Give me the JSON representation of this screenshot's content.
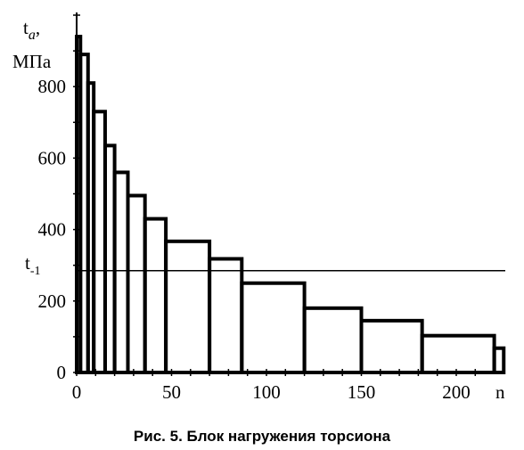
{
  "caption": "Рис. 5. Блок нагружения торсиона",
  "chart_data": {
    "type": "step",
    "ylabel_main": "t",
    "ylabel_sub": "a",
    "ylabel_suffix": ",",
    "yunit": "МПа",
    "xlabel": "n",
    "xlim": [
      0,
      215
    ],
    "ylim": [
      0,
      1000
    ],
    "xticks": [
      0,
      50,
      100,
      150,
      200
    ],
    "yticks": [
      0,
      200,
      400,
      600,
      800
    ],
    "threshold": {
      "label_main": "t",
      "label_sub": "-1",
      "value": 285
    },
    "blocks": [
      {
        "n_start": 0,
        "n_end": 2,
        "t": 940
      },
      {
        "n_start": 2,
        "n_end": 6,
        "t": 890
      },
      {
        "n_start": 6,
        "n_end": 9,
        "t": 810
      },
      {
        "n_start": 9,
        "n_end": 15,
        "t": 730
      },
      {
        "n_start": 15,
        "n_end": 20,
        "t": 635
      },
      {
        "n_start": 20,
        "n_end": 27,
        "t": 560
      },
      {
        "n_start": 27,
        "n_end": 36,
        "t": 495
      },
      {
        "n_start": 36,
        "n_end": 47,
        "t": 430
      },
      {
        "n_start": 47,
        "n_end": 70,
        "t": 367
      },
      {
        "n_start": 70,
        "n_end": 87,
        "t": 318
      },
      {
        "n_start": 87,
        "n_end": 120,
        "t": 250
      },
      {
        "n_start": 120,
        "n_end": 150,
        "t": 180
      },
      {
        "n_start": 150,
        "n_end": 182,
        "t": 145
      },
      {
        "n_start": 182,
        "n_end": 220,
        "t": 103
      },
      {
        "n_start": 220,
        "n_end": 225,
        "t": 68
      }
    ]
  }
}
